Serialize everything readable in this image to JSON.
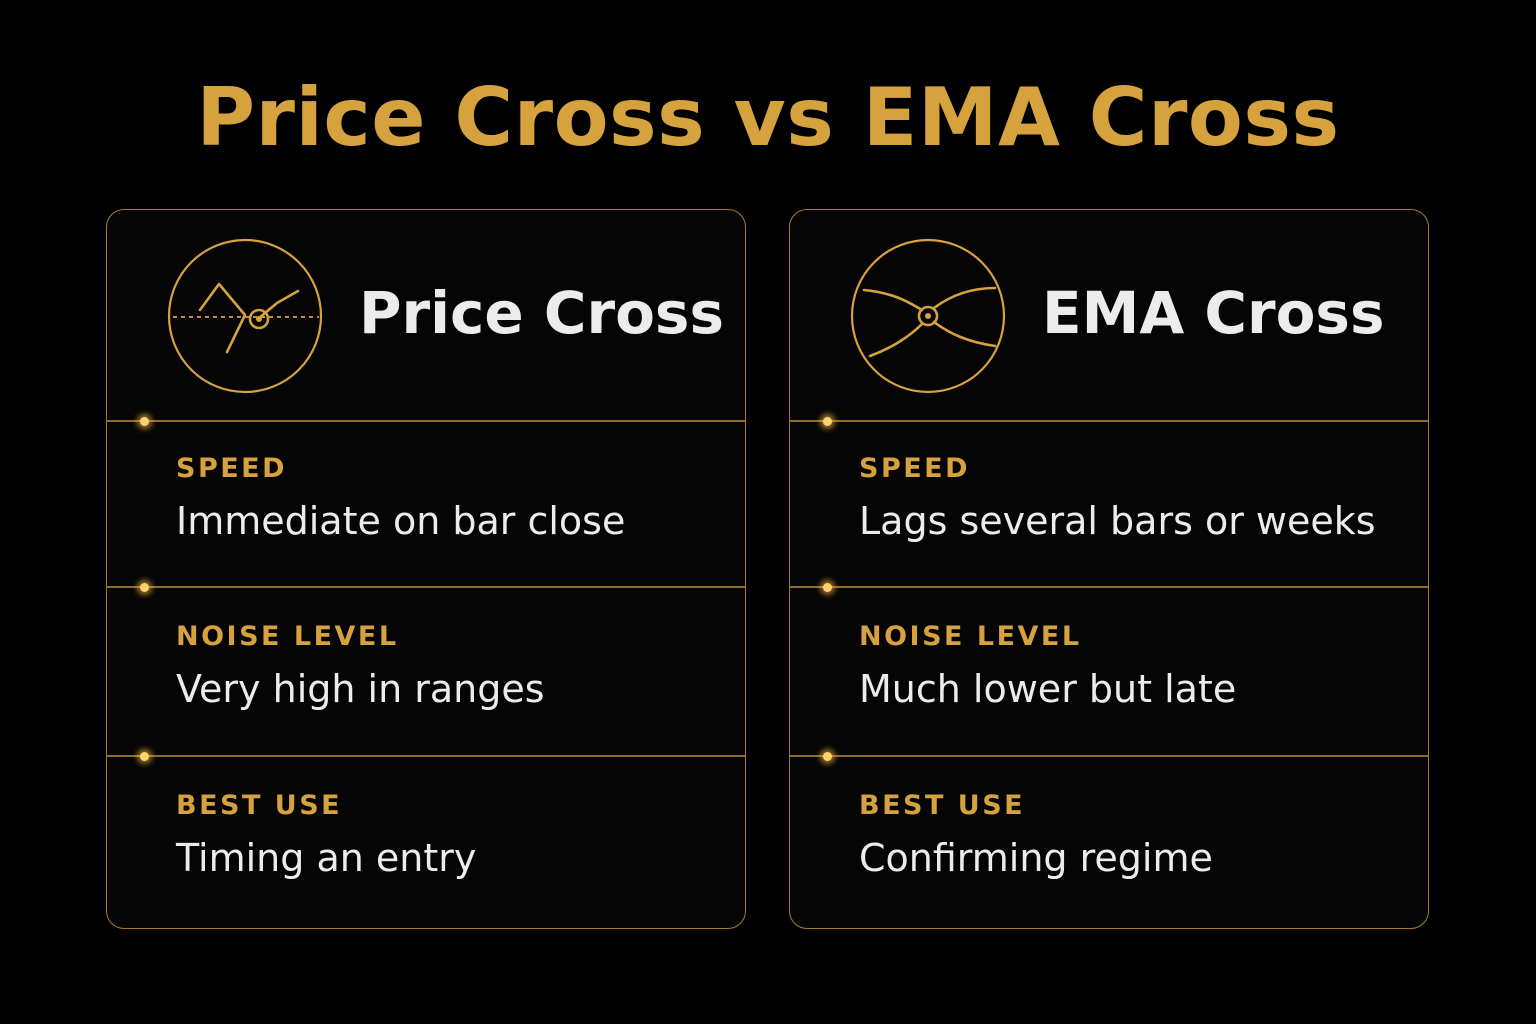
{
  "title": "Price Cross vs EMA Cross",
  "colors": {
    "accent": "#d6a23e",
    "border": "#a37a33",
    "text": "#ececea",
    "background": "#000000"
  },
  "cards": [
    {
      "title": "Price Cross",
      "icon": "price-cross-icon",
      "rows": [
        {
          "label": "SPEED",
          "value": "Immediate on bar close"
        },
        {
          "label": "NOISE LEVEL",
          "value": "Very high in ranges"
        },
        {
          "label": "BEST USE",
          "value": "Timing an entry"
        }
      ]
    },
    {
      "title": "EMA Cross",
      "icon": "ema-cross-icon",
      "rows": [
        {
          "label": "SPEED",
          "value": "Lags several bars or weeks"
        },
        {
          "label": "NOISE LEVEL",
          "value": "Much lower but late"
        },
        {
          "label": "BEST USE",
          "value": "Confirming regime"
        }
      ]
    }
  ]
}
